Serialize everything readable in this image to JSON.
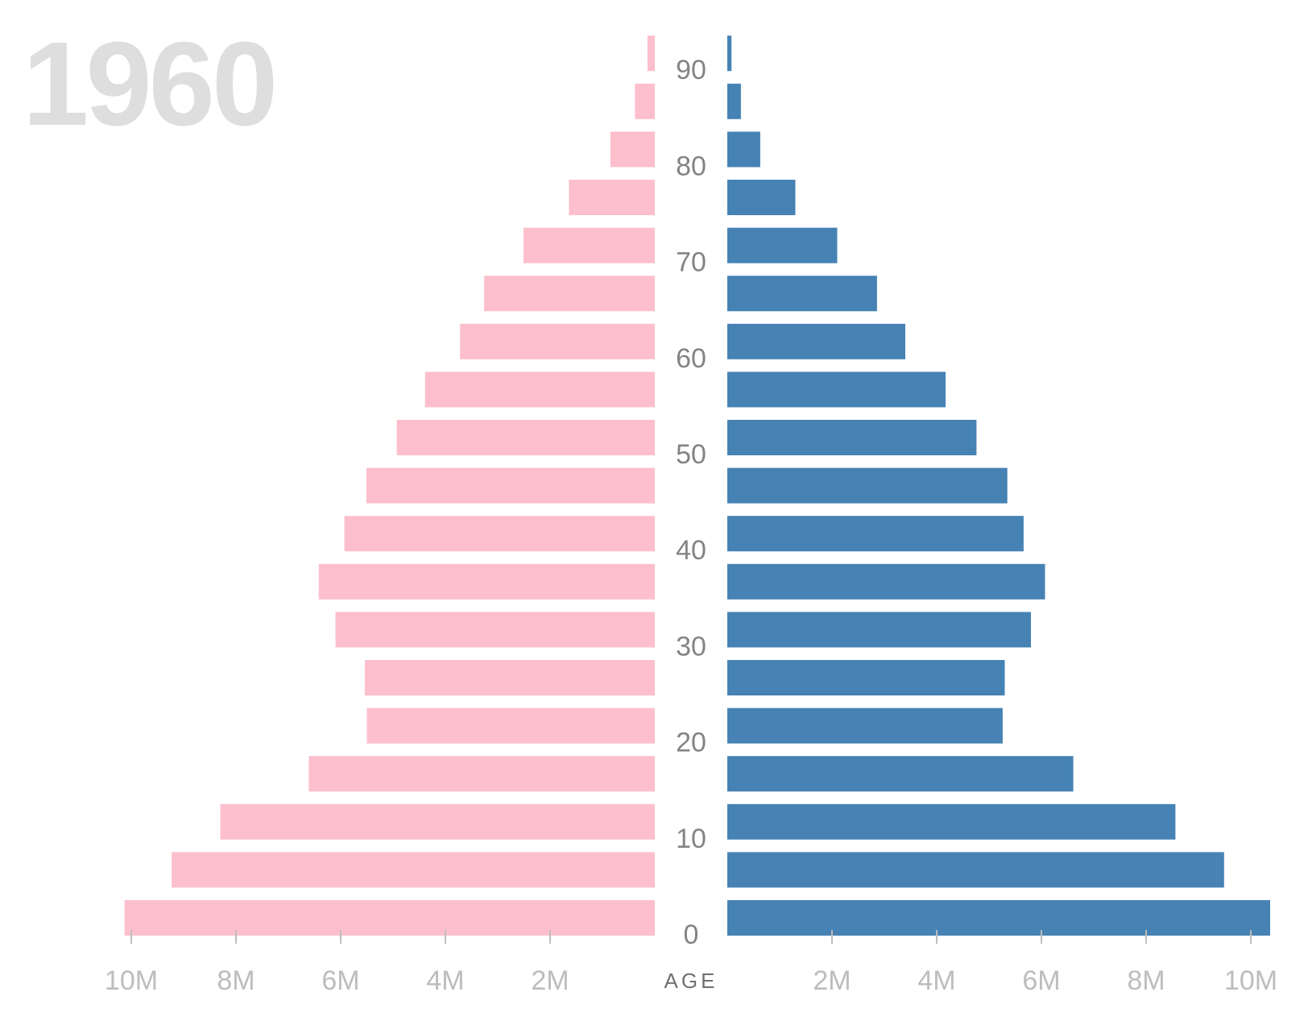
{
  "year": "1960",
  "colors": {
    "female": "#fdbfcc",
    "male": "#4682b4",
    "year_text": "#dedede",
    "age_labels": "#848484",
    "pop_labels": "#bdbdbd",
    "ticks": "#bdbdbd"
  },
  "chart_data": {
    "type": "bar",
    "orientation": "horizontal",
    "layout": "population-pyramid",
    "title": "1960",
    "xlabel": "",
    "ylabel": "AGE",
    "age_groups": [
      0,
      5,
      10,
      15,
      20,
      25,
      30,
      35,
      40,
      45,
      50,
      55,
      60,
      65,
      70,
      75,
      80,
      85,
      90
    ],
    "age_ticks": [
      0,
      10,
      20,
      30,
      40,
      50,
      60,
      70,
      80,
      90
    ],
    "pop_ticks_left": [
      10000000,
      8000000,
      6000000,
      4000000,
      2000000
    ],
    "pop_tick_labels_left": [
      "10M",
      "8M",
      "6M",
      "4M",
      "2M"
    ],
    "pop_ticks_right": [
      2000000,
      4000000,
      6000000,
      8000000,
      10000000
    ],
    "pop_tick_labels_right": [
      "2M",
      "4M",
      "6M",
      "8M",
      "10M"
    ],
    "xlim": [
      0,
      10500000
    ],
    "series": [
      {
        "side": "left",
        "color": "#fdbfcc",
        "values": [
          10130000,
          9230000,
          8300000,
          6610000,
          5500000,
          5540000,
          6100000,
          6420000,
          5930000,
          5510000,
          4930000,
          4390000,
          3720000,
          3260000,
          2510000,
          1640000,
          850000,
          380000,
          140000
        ]
      },
      {
        "side": "right",
        "color": "#4682b4",
        "values": [
          10370000,
          9490000,
          8560000,
          6610000,
          5260000,
          5300000,
          5800000,
          6070000,
          5660000,
          5350000,
          4760000,
          4170000,
          3400000,
          2860000,
          2100000,
          1300000,
          630000,
          260000,
          80000
        ]
      }
    ],
    "grid": false,
    "legend": "none"
  }
}
